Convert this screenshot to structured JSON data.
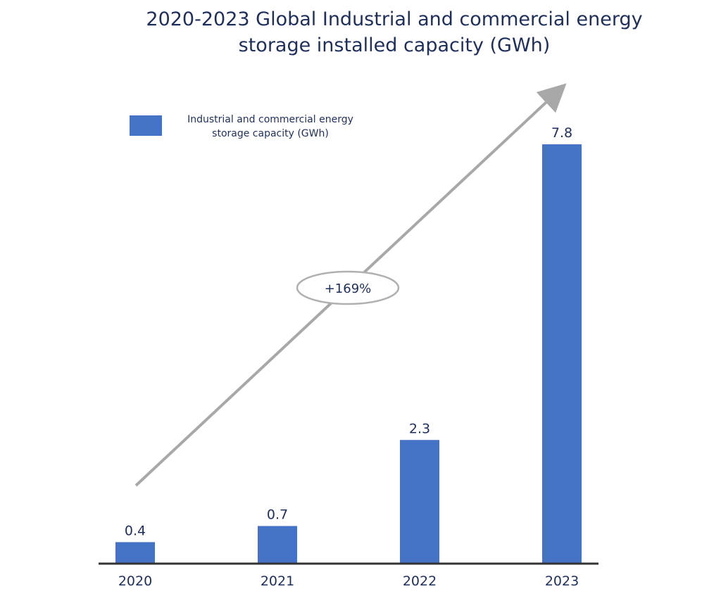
{
  "chart_data": {
    "type": "bar",
    "title_line1": "2020-2023 Global Industrial and commercial energy",
    "title_line2": "storage installed capacity (GWh)",
    "categories": [
      "2020",
      "2021",
      "2022",
      "2023"
    ],
    "series": [
      {
        "name": "Industrial and commercial energy storage capacity (GWh)",
        "values": [
          0.4,
          0.7,
          2.3,
          7.8
        ]
      }
    ],
    "data_labels": [
      "0.4",
      "0.7",
      "2.3",
      "7.8"
    ],
    "legend": {
      "position": "top-left",
      "line1": "Industrial and commercial energy",
      "line2": "storage capacity (GWh)"
    },
    "annotation": "+169%",
    "grid": false,
    "ylim": [
      0,
      8
    ]
  },
  "colors": {
    "bar": "#4472c4",
    "text": "#1f2f5c",
    "axis": "#333333",
    "arrow": "#a8a8a8"
  }
}
